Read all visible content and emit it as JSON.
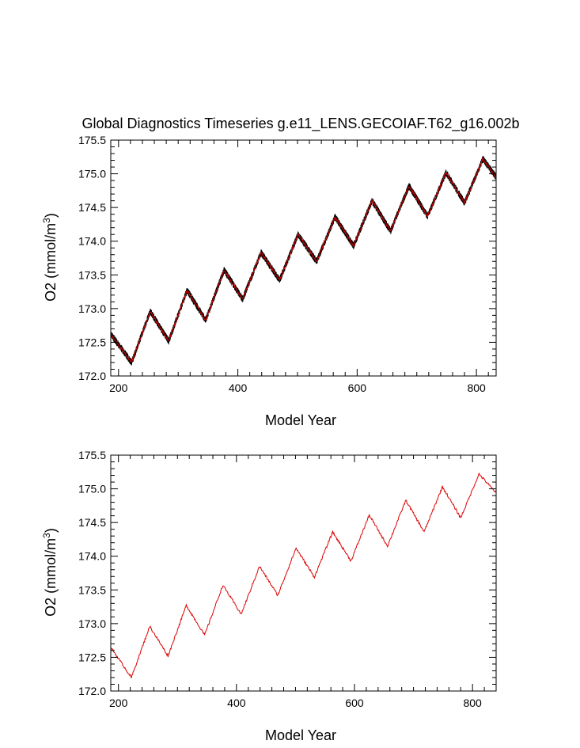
{
  "chart_data": [
    {
      "type": "line",
      "title": "Global Diagnostics Timeseries g.e11_LENS.GECOIAF.T62_g16.002b",
      "xlabel": "Model Year",
      "ylabel_main": "O2 (mmol/m",
      "ylabel_sup": "3",
      "ylabel_end": ")",
      "xlim": [
        187,
        833
      ],
      "ylim": [
        172.0,
        175.5
      ],
      "xticks": [
        200,
        400,
        600,
        800
      ],
      "yticks": [
        "172.0",
        "172.5",
        "173.0",
        "173.5",
        "174.0",
        "174.5",
        "175.0",
        "175.5"
      ],
      "series_colors": [
        "#000000",
        "#cc0000"
      ],
      "peaks": [
        [
          187,
          172.62
        ],
        [
          222,
          172.2
        ],
        [
          253,
          172.96
        ],
        [
          284,
          172.52
        ],
        [
          315,
          173.27
        ],
        [
          346,
          172.83
        ],
        [
          377,
          173.57
        ],
        [
          408,
          173.14
        ],
        [
          439,
          173.83
        ],
        [
          470,
          173.42
        ],
        [
          501,
          174.1
        ],
        [
          532,
          173.7
        ],
        [
          563,
          174.36
        ],
        [
          594,
          173.93
        ],
        [
          625,
          174.6
        ],
        [
          656,
          174.15
        ],
        [
          687,
          174.82
        ],
        [
          718,
          174.37
        ],
        [
          749,
          175.02
        ],
        [
          780,
          174.57
        ],
        [
          811,
          175.22
        ],
        [
          833,
          174.95
        ]
      ]
    },
    {
      "type": "line",
      "title": "",
      "xlabel": "Model Year",
      "ylabel_main": "O2 (mmol/m",
      "ylabel_sup": "3",
      "ylabel_end": ")",
      "xlim": [
        187,
        840
      ],
      "ylim": [
        172.0,
        175.5
      ],
      "xticks": [
        200,
        400,
        600,
        800
      ],
      "yticks": [
        "172.0",
        "172.5",
        "173.0",
        "173.5",
        "174.0",
        "174.5",
        "175.0",
        "175.5"
      ],
      "series_colors": [
        "#dd0000"
      ],
      "peaks": [
        [
          187,
          172.65
        ],
        [
          222,
          172.2
        ],
        [
          253,
          172.96
        ],
        [
          284,
          172.52
        ],
        [
          315,
          173.27
        ],
        [
          346,
          172.83
        ],
        [
          377,
          173.57
        ],
        [
          408,
          173.14
        ],
        [
          439,
          173.85
        ],
        [
          470,
          173.42
        ],
        [
          501,
          174.12
        ],
        [
          532,
          173.69
        ],
        [
          563,
          174.36
        ],
        [
          594,
          173.93
        ],
        [
          625,
          174.61
        ],
        [
          656,
          174.15
        ],
        [
          687,
          174.83
        ],
        [
          718,
          174.36
        ],
        [
          749,
          175.03
        ],
        [
          780,
          174.57
        ],
        [
          811,
          175.22
        ],
        [
          840,
          174.94
        ]
      ]
    }
  ]
}
